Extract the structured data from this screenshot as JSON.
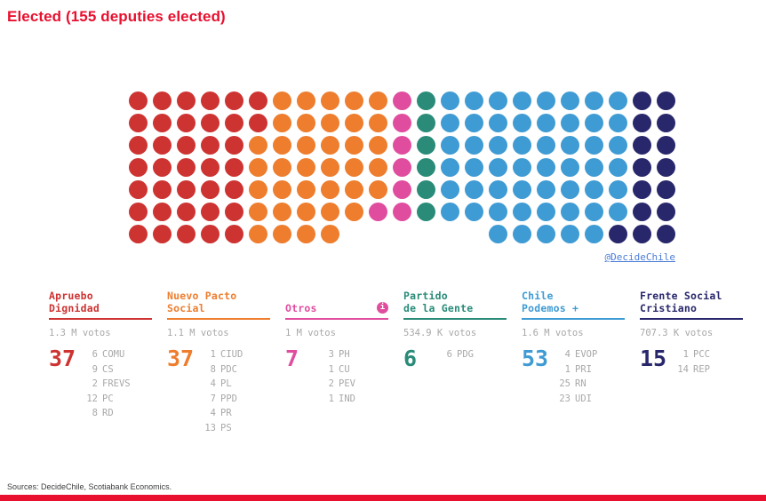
{
  "title": "Elected (155 deputies elected)",
  "attribution": "@DecideChile",
  "sources": "Sources: DecideChile, Scotiabank Economics.",
  "colors": {
    "accent_red": "#e8102e",
    "link_blue": "#4a7cd9",
    "muted_gray": "#a8a8a8"
  },
  "chart_data": {
    "type": "waffle",
    "title": "Elected (155 deputies elected)",
    "total_seats": 155,
    "fill_order": "column-major, top to bottom, left to right",
    "column_heights": [
      7,
      7,
      7,
      7,
      7,
      7,
      7,
      7,
      7,
      6,
      6,
      6,
      6,
      6,
      6,
      7,
      7,
      7,
      7,
      7,
      7,
      7,
      7
    ],
    "parties": [
      {
        "name": "Apruebo Dignidad",
        "name_lines": [
          "Apruebo",
          "Dignidad"
        ],
        "color": "#cd3331",
        "seats": 37,
        "votes_label": "1.3 M votos",
        "has_info_icon": false,
        "breakdown": [
          {
            "seats": 6,
            "party": "COMU"
          },
          {
            "seats": 9,
            "party": "CS"
          },
          {
            "seats": 2,
            "party": "FREVS"
          },
          {
            "seats": 12,
            "party": "PC"
          },
          {
            "seats": 8,
            "party": "RD"
          }
        ]
      },
      {
        "name": "Nuevo Pacto Social",
        "name_lines": [
          "Nuevo Pacto",
          "Social"
        ],
        "color": "#ee7d2e",
        "seats": 37,
        "votes_label": "1.1 M votos",
        "has_info_icon": false,
        "breakdown": [
          {
            "seats": 1,
            "party": "CIUD"
          },
          {
            "seats": 8,
            "party": "PDC"
          },
          {
            "seats": 4,
            "party": "PL"
          },
          {
            "seats": 7,
            "party": "PPD"
          },
          {
            "seats": 4,
            "party": "PR"
          },
          {
            "seats": 13,
            "party": "PS"
          }
        ]
      },
      {
        "name": "Otros",
        "name_lines": [
          "Otros"
        ],
        "color": "#e04d9e",
        "seats": 7,
        "votes_label": "1 M votos",
        "has_info_icon": true,
        "breakdown": [
          {
            "seats": 3,
            "party": "PH"
          },
          {
            "seats": 1,
            "party": "CU"
          },
          {
            "seats": 2,
            "party": "PEV"
          },
          {
            "seats": 1,
            "party": "IND"
          }
        ]
      },
      {
        "name": "Partido de la Gente",
        "name_lines": [
          "Partido",
          "de la Gente"
        ],
        "color": "#298b78",
        "seats": 6,
        "votes_label": "534.9 K votos",
        "has_info_icon": false,
        "breakdown": [
          {
            "seats": 6,
            "party": "PDG"
          }
        ]
      },
      {
        "name": "Chile Podemos +",
        "name_lines": [
          "Chile",
          "Podemos +"
        ],
        "color": "#3f9bd3",
        "seats": 53,
        "votes_label": "1.6 M votos",
        "has_info_icon": false,
        "breakdown": [
          {
            "seats": 4,
            "party": "EVOP"
          },
          {
            "seats": 1,
            "party": "PRI"
          },
          {
            "seats": 25,
            "party": "RN"
          },
          {
            "seats": 23,
            "party": "UDI"
          }
        ]
      },
      {
        "name": "Frente Social Cristiano",
        "name_lines": [
          "Frente Social",
          "Cristiano"
        ],
        "color": "#28276b",
        "seats": 15,
        "votes_label": "707.3 K votos",
        "has_info_icon": false,
        "breakdown": [
          {
            "seats": 1,
            "party": "PCC"
          },
          {
            "seats": 14,
            "party": "REP"
          }
        ]
      }
    ]
  }
}
